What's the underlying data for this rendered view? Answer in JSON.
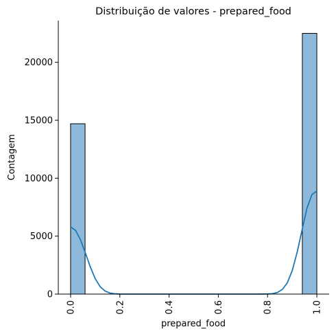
{
  "chart_data": {
    "type": "bar",
    "title": "Distribuição de valores - prepared_food",
    "xlabel": "prepared_food",
    "ylabel": "Contagem",
    "xlim": [
      -0.05,
      1.05
    ],
    "ylim": [
      0,
      23600
    ],
    "xticks": [
      "0.0",
      "0.2",
      "0.4",
      "0.6",
      "0.8",
      "1.0"
    ],
    "yticks": [
      "0",
      "5000",
      "10000",
      "15000",
      "20000"
    ],
    "bins": [
      {
        "x0": 0.0,
        "x1": 0.0588,
        "count": 14700
      },
      {
        "x0": 0.9412,
        "x1": 1.0,
        "count": 22500
      }
    ],
    "kde": {
      "x": [
        0.0,
        0.02,
        0.04,
        0.06,
        0.08,
        0.1,
        0.12,
        0.14,
        0.16,
        0.18,
        0.2,
        0.25,
        0.3,
        0.4,
        0.5,
        0.6,
        0.7,
        0.75,
        0.8,
        0.82,
        0.84,
        0.86,
        0.88,
        0.9,
        0.92,
        0.94,
        0.96,
        0.98,
        1.0
      ],
      "y": [
        5800,
        5500,
        4700,
        3550,
        2350,
        1330,
        640,
        260,
        90,
        25,
        5,
        0,
        0,
        0,
        0,
        0,
        0,
        0,
        8,
        38,
        140,
        400,
        970,
        2020,
        3600,
        5540,
        7410,
        8580,
        8900
      ]
    },
    "grid": false,
    "bar_color": "#8fb9db",
    "bar_edge_color": "#000000",
    "line_color": "#1f77b4"
  }
}
